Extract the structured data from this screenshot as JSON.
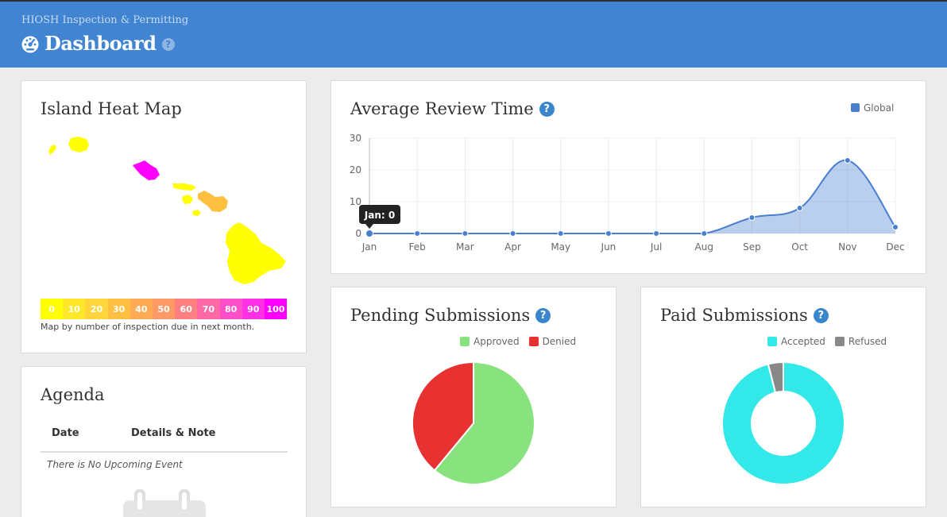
{
  "header": {
    "app_name": "HIOSH Inspection & Permitting",
    "title": "Dashboard",
    "help": "?"
  },
  "heat_map": {
    "title": "Island Heat Map",
    "legend": [
      {
        "label": "0",
        "color": "#ffff00"
      },
      {
        "label": "10",
        "color": "#ffe82a"
      },
      {
        "label": "20",
        "color": "#ffd43c"
      },
      {
        "label": "30",
        "color": "#ffc041"
      },
      {
        "label": "40",
        "color": "#ffaa55"
      },
      {
        "label": "50",
        "color": "#ff9966"
      },
      {
        "label": "60",
        "color": "#ff8080"
      },
      {
        "label": "70",
        "color": "#ff6aa6"
      },
      {
        "label": "80",
        "color": "#ff4fc8"
      },
      {
        "label": "90",
        "color": "#ff30e6"
      },
      {
        "label": "100",
        "color": "#ff00ff"
      }
    ],
    "caption": "Map by number of inspection due in next month.",
    "islands": [
      {
        "name": "Niihau",
        "color": "#ffff00"
      },
      {
        "name": "Kauai",
        "color": "#ffff00"
      },
      {
        "name": "Oahu",
        "color": "#ff00ff"
      },
      {
        "name": "Molokai",
        "color": "#ffff00"
      },
      {
        "name": "Lanai",
        "color": "#ffff00"
      },
      {
        "name": "Maui",
        "color": "#ffc041"
      },
      {
        "name": "Kahoolawe",
        "color": "#ffff00"
      },
      {
        "name": "Hawaii",
        "color": "#ffff00"
      }
    ]
  },
  "agenda": {
    "title": "Agenda",
    "col_date": "Date",
    "col_details": "Details & Note",
    "empty": "There is No Upcoming Event"
  },
  "review_time": {
    "title": "Average Review Time",
    "help": "?",
    "tooltip": "Jan: 0"
  },
  "pending": {
    "title": "Pending Submissions",
    "help": "?"
  },
  "paid": {
    "title": "Paid Submissions",
    "help": "?"
  },
  "chart_data": [
    {
      "type": "area",
      "title": "Average Review Time",
      "categories": [
        "Jan",
        "Feb",
        "Mar",
        "Apr",
        "May",
        "Jun",
        "Jul",
        "Aug",
        "Sep",
        "Oct",
        "Nov",
        "Dec"
      ],
      "series": [
        {
          "name": "Global",
          "color": "#4a7fcf",
          "values": [
            0,
            0,
            0,
            0,
            0,
            0,
            0,
            0,
            5,
            8,
            23,
            2
          ]
        }
      ],
      "ylim": [
        0,
        30
      ],
      "yticks": [
        0,
        10,
        20,
        30
      ],
      "grid": true,
      "legend": "top-right"
    },
    {
      "type": "pie",
      "title": "Pending Submissions",
      "labels": [
        "Approved",
        "Denied"
      ],
      "values": [
        61,
        39
      ],
      "colors": [
        "#88e37e",
        "#e83232"
      ],
      "legend": "top"
    },
    {
      "type": "pie",
      "title": "Paid Submissions",
      "donut": true,
      "labels": [
        "Accepted",
        "Refused"
      ],
      "values": [
        96,
        4
      ],
      "colors": [
        "#33e8e8",
        "#888888"
      ],
      "legend": "top"
    }
  ]
}
